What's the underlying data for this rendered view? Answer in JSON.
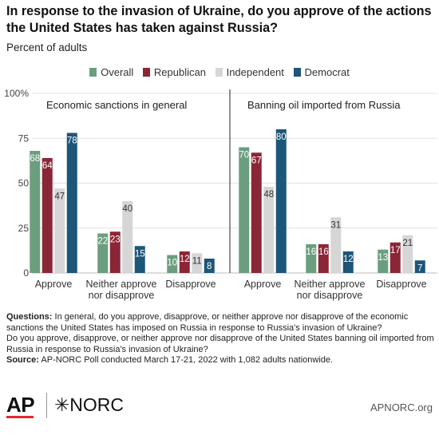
{
  "title": "In response to the invasion of Ukraine, do you approve of the actions the United States has taken against Russia?",
  "subtitle": "Percent of adults",
  "colors": {
    "overall": "#6b9e7e",
    "republican": "#8b2636",
    "independent": "#d6d6d6",
    "democrat": "#1c5678"
  },
  "chart_data": {
    "type": "bar",
    "series": [
      {
        "name": "Overall"
      },
      {
        "name": "Republican"
      },
      {
        "name": "Independent"
      },
      {
        "name": "Democrat"
      }
    ],
    "ylim": [
      0,
      100
    ],
    "yticks": [
      "0",
      "25",
      "50",
      "75",
      "100%"
    ],
    "panels": [
      {
        "title": "Economic sanctions in general",
        "categories": [
          [
            "Approve"
          ],
          [
            "Neither approve",
            "nor disapprove"
          ],
          [
            "Disapprove"
          ]
        ],
        "values": [
          [
            68,
            64,
            47,
            78
          ],
          [
            22,
            23,
            40,
            15
          ],
          [
            10,
            12,
            11,
            8
          ]
        ]
      },
      {
        "title": "Banning oil imported from Russia",
        "categories": [
          [
            "Approve"
          ],
          [
            "Neither approve",
            "nor disapprove"
          ],
          [
            "Disapprove"
          ]
        ],
        "values": [
          [
            70,
            67,
            48,
            80
          ],
          [
            16,
            16,
            31,
            12
          ],
          [
            13,
            17,
            21,
            7
          ]
        ]
      }
    ]
  },
  "footer": {
    "questions_label": "Questions:",
    "question1": " In general, do you approve, disapprove, or neither approve nor disapprove of the economic sanctions the United States has imposed on Russia in response to Russia's invasion of Ukraine?",
    "question2": "Do you approve, disapprove, or neither approve nor disapprove of the United States banning oil imported from Russia in response to Russia's invasion of Ukraine?",
    "source_label": "Source:",
    "source": " AP-NORC Poll conducted March 17-21, 2022 with 1,082 adults nationwide."
  },
  "logos": {
    "ap": "AP",
    "norc": "✳NORC",
    "site": "APNORC.org"
  }
}
